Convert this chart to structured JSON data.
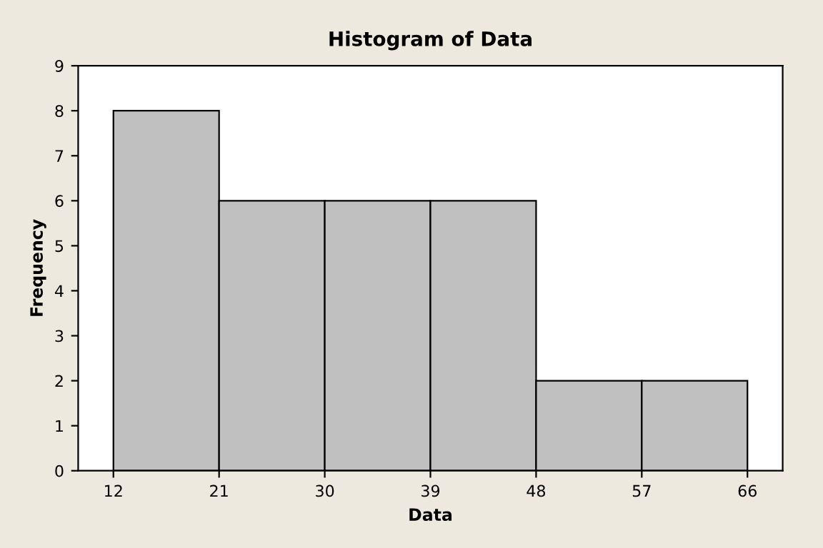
{
  "chart_data": {
    "type": "histogram",
    "title": "Histogram of Data",
    "xlabel": "Data",
    "ylabel": "Frequency",
    "bins": [
      12,
      21,
      30,
      39,
      48,
      57,
      66
    ],
    "values": [
      8,
      6,
      6,
      6,
      2,
      2
    ],
    "color": "#c0c0c0",
    "xlim": [
      9,
      69
    ],
    "xticks": [
      12,
      21,
      30,
      39,
      48,
      57,
      66
    ],
    "ylim": [
      0,
      9
    ],
    "yticks": [
      0,
      1,
      2,
      3,
      4,
      5,
      6,
      7,
      8,
      9
    ],
    "grid": false,
    "legend": false
  }
}
